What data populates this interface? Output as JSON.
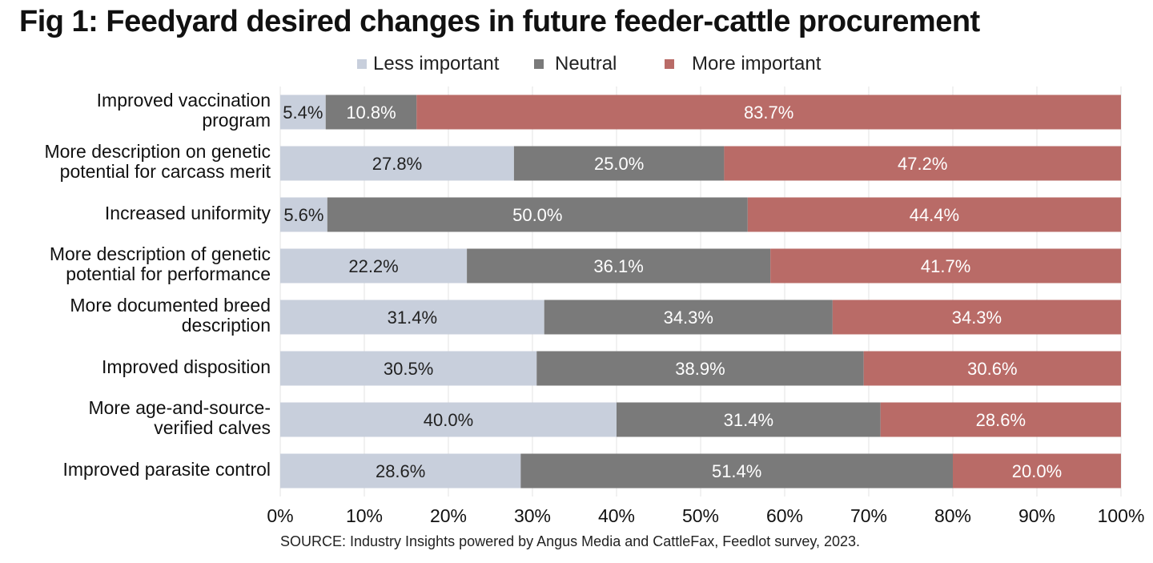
{
  "title": "Fig 1: Feedyard desired changes in future feeder-cattle procurement",
  "source": "SOURCE: Industry Insights powered by Angus Media and CattleFax, Feedlot survey, 2023.",
  "colors": {
    "less": "#c8cfdc",
    "neutral": "#7a7a7a",
    "more": "#b96b67"
  },
  "chart_data": {
    "type": "bar",
    "orientation": "horizontal",
    "stacked": true,
    "title": "Fig 1: Feedyard desired changes in future feeder-cattle procurement",
    "xlabel": "",
    "ylabel": "",
    "xlim": [
      0,
      100
    ],
    "x_ticks": [
      "0%",
      "10%",
      "20%",
      "30%",
      "40%",
      "50%",
      "60%",
      "70%",
      "80%",
      "90%",
      "100%"
    ],
    "legend_position": "top-center",
    "grid": true,
    "categories": [
      [
        "Improved vaccination",
        "program"
      ],
      [
        "More description on genetic",
        "potential for carcass merit"
      ],
      [
        "Increased uniformity"
      ],
      [
        "More description of genetic",
        "potential for performance"
      ],
      [
        "More documented breed",
        "description"
      ],
      [
        "Improved disposition"
      ],
      [
        "More age-and-source-",
        "verified calves"
      ],
      [
        "Improved parasite control"
      ]
    ],
    "series": [
      {
        "name": "Less important",
        "values": [
          5.4,
          27.8,
          5.6,
          22.2,
          31.4,
          30.5,
          40.0,
          28.6
        ],
        "labels": [
          "5.4%",
          "27.8%",
          "5.6%",
          "22.2%",
          "31.4%",
          "30.5%",
          "40.0%",
          "28.6%"
        ]
      },
      {
        "name": "Neutral",
        "values": [
          10.8,
          25.0,
          50.0,
          36.1,
          34.3,
          38.9,
          31.4,
          51.4
        ],
        "labels": [
          "10.8%",
          "25.0%",
          "50.0%",
          "36.1%",
          "34.3%",
          "38.9%",
          "31.4%",
          "51.4%"
        ]
      },
      {
        "name": "More important",
        "values": [
          83.7,
          47.2,
          44.4,
          41.7,
          34.3,
          30.6,
          28.6,
          20.0
        ],
        "labels": [
          "83.7%",
          "47.2%",
          "44.4%",
          "41.7%",
          "34.3%",
          "30.6%",
          "28.6%",
          "20.0%"
        ]
      }
    ]
  }
}
